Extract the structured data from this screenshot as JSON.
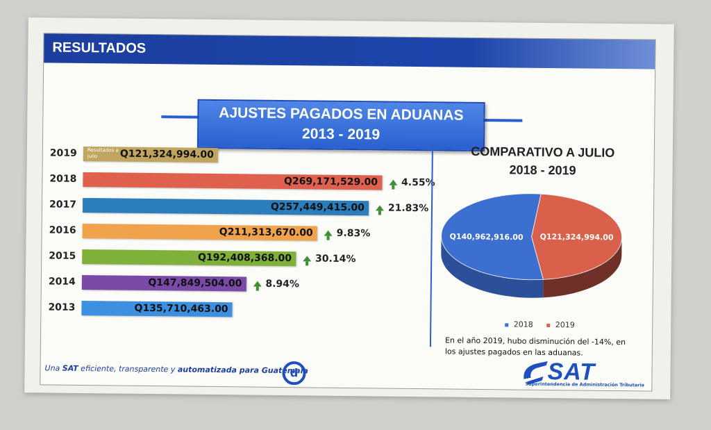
{
  "header": {
    "title": "RESULTADOS"
  },
  "main_title": {
    "line1": "AJUSTES PAGADOS EN ADUANAS",
    "line2": "2013 - 2019"
  },
  "chart_data": [
    {
      "type": "bar",
      "orientation": "horizontal",
      "categories": [
        "2019",
        "2018",
        "2017",
        "2016",
        "2015",
        "2014",
        "2013"
      ],
      "values": [
        121324994.0,
        269171529.0,
        257449415.0,
        211313670.0,
        192408368.0,
        147849504.0,
        135710463.0
      ],
      "value_labels": [
        "Q121,324,994.00",
        "Q269,171,529.00",
        "Q257,449,415.00",
        "Q211,313,670.00",
        "Q192,408,368.00",
        "Q147,849,504.00",
        "Q135,710,463.00"
      ],
      "colors": [
        "#bfa55e",
        "#e0604e",
        "#2c7dbb",
        "#f0a34c",
        "#7fb03a",
        "#7b4aa8",
        "#3d8fe0"
      ],
      "growth": [
        "",
        "4.55%",
        "21.83%",
        "9.83%",
        "30.14%",
        "8.94%",
        ""
      ],
      "annotation_2019": "Resultados a julio",
      "xlim": [
        0,
        300000000
      ],
      "title": "AJUSTES PAGADOS EN ADUANAS 2013 - 2019"
    },
    {
      "type": "pie",
      "title": "COMPARATIVO A JULIO",
      "subtitle": "2018 - 2019",
      "categories": [
        "2018",
        "2019"
      ],
      "values": [
        140962916.0,
        121324994.0
      ],
      "value_labels": [
        "Q140,962,916.00",
        "Q121,324,994.00"
      ],
      "colors": [
        "#3d6fd1",
        "#d9614b"
      ],
      "legend_position": "bottom"
    }
  ],
  "pie_note": "En el año 2019, hubo disminución del -14%, en los ajustes pagados en las aduanas.",
  "footer": {
    "slogan_prefix": "Una ",
    "slogan_sat": "SAT",
    "slogan_mid": " eficiente, transparente y ",
    "slogan_bold": "automatizada para Guatemala",
    "gov_logo": "d",
    "sat_logo": "SAT",
    "sat_subtitle": "Superintendencia de Administración Tributaria"
  },
  "colors": {
    "header_blue": "#1c3f9e",
    "accent_blue": "#2a5fd0",
    "growth_green": "#3f8f36"
  }
}
